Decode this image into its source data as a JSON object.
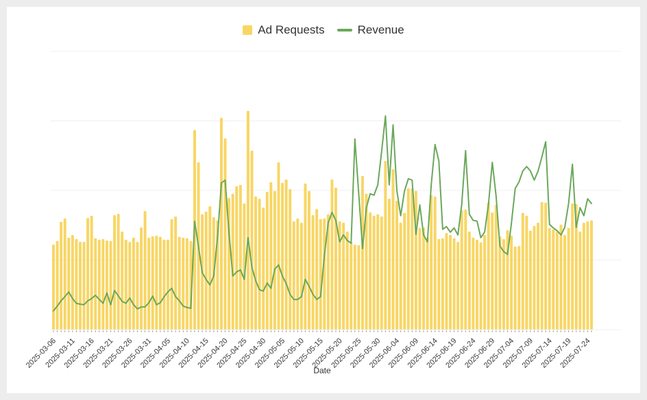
{
  "axis": {
    "xlabel": "Date"
  },
  "colors": {
    "background_frame": "#EDEDED",
    "card": "#FFFFFF",
    "gridline": "#F0F0F0",
    "tick_mark": "#999999",
    "tick_label": "#3a3a3a",
    "legend_text": "#333333",
    "ad_requests_yellow": "#F8D665",
    "revenue_green": "#6AA85A"
  },
  "chart_data": {
    "type": "bar",
    "title": "",
    "xlabel": "Date",
    "ylabel": "",
    "ylim": [
      0,
      100
    ],
    "y_axis_labels_visible": false,
    "gridlines_at": [
      25,
      50,
      75,
      100
    ],
    "legend_position": "top",
    "x_tick_interval_days": 5,
    "x": [
      "2025-03-06",
      "2025-03-07",
      "2025-03-08",
      "2025-03-09",
      "2025-03-10",
      "2025-03-11",
      "2025-03-12",
      "2025-03-13",
      "2025-03-14",
      "2025-03-15",
      "2025-03-16",
      "2025-03-17",
      "2025-03-18",
      "2025-03-19",
      "2025-03-20",
      "2025-03-21",
      "2025-03-22",
      "2025-03-23",
      "2025-03-24",
      "2025-03-25",
      "2025-03-26",
      "2025-03-27",
      "2025-03-28",
      "2025-03-29",
      "2025-03-30",
      "2025-03-31",
      "2025-04-01",
      "2025-04-02",
      "2025-04-03",
      "2025-04-04",
      "2025-04-05",
      "2025-04-06",
      "2025-04-07",
      "2025-04-08",
      "2025-04-09",
      "2025-04-10",
      "2025-04-11",
      "2025-04-12",
      "2025-04-13",
      "2025-04-14",
      "2025-04-15",
      "2025-04-16",
      "2025-04-17",
      "2025-04-18",
      "2025-04-19",
      "2025-04-20",
      "2025-04-21",
      "2025-04-22",
      "2025-04-23",
      "2025-04-24",
      "2025-04-25",
      "2025-04-26",
      "2025-04-27",
      "2025-04-28",
      "2025-04-29",
      "2025-04-30",
      "2025-05-01",
      "2025-05-02",
      "2025-05-03",
      "2025-05-04",
      "2025-05-05",
      "2025-05-06",
      "2025-05-07",
      "2025-05-08",
      "2025-05-09",
      "2025-05-10",
      "2025-05-11",
      "2025-05-12",
      "2025-05-13",
      "2025-05-14",
      "2025-05-15",
      "2025-05-16",
      "2025-05-17",
      "2025-05-18",
      "2025-05-19",
      "2025-05-20",
      "2025-05-21",
      "2025-05-22",
      "2025-05-23",
      "2025-05-24",
      "2025-05-25",
      "2025-05-26",
      "2025-05-27",
      "2025-05-28",
      "2025-05-29",
      "2025-05-30",
      "2025-05-31",
      "2025-06-01",
      "2025-06-02",
      "2025-06-03",
      "2025-06-04",
      "2025-06-05",
      "2025-06-06",
      "2025-06-07",
      "2025-06-08",
      "2025-06-09",
      "2025-06-10",
      "2025-06-11",
      "2025-06-12",
      "2025-06-13",
      "2025-06-14",
      "2025-06-15",
      "2025-06-16",
      "2025-06-17",
      "2025-06-18",
      "2025-06-19",
      "2025-06-20",
      "2025-06-21",
      "2025-06-22",
      "2025-06-23",
      "2025-06-24",
      "2025-06-25",
      "2025-06-26",
      "2025-06-27",
      "2025-06-28",
      "2025-06-29",
      "2025-06-30",
      "2025-07-01",
      "2025-07-02",
      "2025-07-03",
      "2025-07-04",
      "2025-07-05",
      "2025-07-06",
      "2025-07-07",
      "2025-07-08",
      "2025-07-09",
      "2025-07-10",
      "2025-07-11",
      "2025-07-12",
      "2025-07-13",
      "2025-07-14",
      "2025-07-15",
      "2025-07-16",
      "2025-07-17",
      "2025-07-18",
      "2025-07-19",
      "2025-07-20",
      "2025-07-21",
      "2025-07-22",
      "2025-07-23",
      "2025-07-24",
      "2025-07-25"
    ],
    "series": [
      {
        "name": "Ad Requests",
        "type": "bar",
        "color": "#F8D665",
        "values": [
          30.5,
          31.8,
          38.7,
          39.9,
          33,
          34,
          32.5,
          31.5,
          31.5,
          40.1,
          40.9,
          32.8,
          32.3,
          32.5,
          32,
          31.8,
          41.1,
          41.6,
          35.2,
          32.3,
          31.5,
          33,
          31.5,
          36.7,
          42.6,
          33,
          33.5,
          33.7,
          33.3,
          32.3,
          32.3,
          39.7,
          40.6,
          33.3,
          33,
          32.8,
          31.8,
          71.7,
          60.1,
          41.4,
          42.4,
          44.3,
          40.4,
          39.2,
          76.1,
          68.7,
          47.3,
          48.8,
          51.5,
          52,
          45.3,
          78.6,
          64.3,
          47.8,
          47,
          43.8,
          49.5,
          53,
          49.8,
          60.1,
          52.7,
          53.9,
          50.5,
          38.9,
          39.9,
          38.4,
          52.5,
          49.8,
          41.1,
          43.3,
          39.7,
          39.9,
          41.4,
          53.9,
          51,
          38.9,
          38.4,
          35.2,
          31.5,
          30.5,
          30.3,
          55.2,
          48.8,
          42.1,
          40.9,
          41.4,
          40.6,
          60.6,
          47,
          57.6,
          46.3,
          38.4,
          41.9,
          50.7,
          50.7,
          49.8,
          36.5,
          36.7,
          33,
          48.3,
          47.8,
          32.5,
          32.8,
          34.7,
          34,
          32.8,
          31.5,
          42.9,
          43.1,
          35.2,
          33,
          32.3,
          31.3,
          34,
          45.6,
          42.1,
          44.8,
          33.5,
          32.5,
          35.7,
          33.7,
          29.8,
          30,
          41.9,
          40.9,
          35.5,
          37.2,
          38.4,
          45.8,
          45.6,
          36.5,
          36,
          35.2,
          37.7,
          34,
          36.5,
          45.3,
          45.1,
          35.2,
          38.4,
          38.9,
          39.2
        ]
      },
      {
        "name": "Revenue",
        "type": "line",
        "color": "#6AA85A",
        "values": [
          6.7,
          8.4,
          10.3,
          11.8,
          13.5,
          11.1,
          9.4,
          9.1,
          8.9,
          10.3,
          11.1,
          12.3,
          10.8,
          9.4,
          13.1,
          8.9,
          14,
          12.1,
          10.1,
          9.4,
          11.3,
          8.9,
          7.4,
          8.1,
          8.1,
          9.6,
          12,
          8.9,
          9.6,
          11.8,
          13.5,
          14.8,
          11.8,
          10.3,
          8.4,
          7.9,
          7.6,
          38.9,
          29.8,
          20.4,
          18,
          16,
          19.2,
          33.3,
          52.7,
          53.7,
          34.7,
          19.2,
          20.7,
          21.4,
          18,
          33,
          22.4,
          17.5,
          14.3,
          13.8,
          16.7,
          14.8,
          21.7,
          23.2,
          19.2,
          16.5,
          12.6,
          10.8,
          10.8,
          11.8,
          18,
          15.5,
          12.6,
          10.8,
          11.8,
          26.6,
          38.4,
          42.1,
          39.2,
          31.5,
          34,
          32,
          31,
          68.5,
          48.8,
          29.1,
          43.8,
          48.8,
          48.3,
          52,
          64,
          76.8,
          52,
          73.6,
          49.8,
          40.9,
          49.8,
          54.2,
          53.7,
          34.2,
          44.8,
          34,
          31.5,
          52,
          66.5,
          60.6,
          36,
          37,
          35,
          36.5,
          34,
          45,
          64.3,
          41.4,
          39.2,
          39,
          33,
          35,
          45,
          60.1,
          48,
          30,
          28,
          27,
          38,
          50.7,
          53,
          57,
          58.6,
          57,
          53.7,
          57,
          62,
          67.5,
          37.7,
          36.5,
          35.5,
          34,
          36.7,
          45.3,
          59.4,
          36.7,
          43.8,
          40.9,
          47,
          45.3
        ]
      }
    ]
  }
}
